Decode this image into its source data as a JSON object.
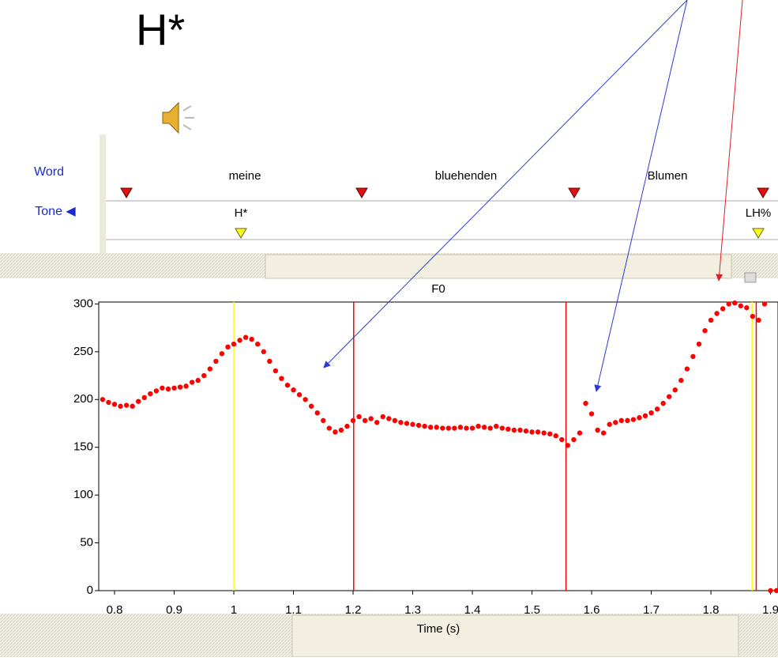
{
  "title": "H*",
  "tiers": {
    "names": [
      "Word",
      "Tone ◀"
    ],
    "words": [
      "meine",
      "bluehenden",
      "Blumen"
    ],
    "tones": [
      "H*",
      "LH%"
    ]
  },
  "chart_data": {
    "type": "scatter",
    "title": "F0",
    "x_label": "Time (s)",
    "color": "#ff0000",
    "x": [
      0.78,
      0.79,
      0.8,
      0.81,
      0.82,
      0.83,
      0.84,
      0.85,
      0.86,
      0.87,
      0.88,
      0.89,
      0.9,
      0.91,
      0.92,
      0.93,
      0.94,
      0.95,
      0.96,
      0.97,
      0.98,
      0.99,
      1.0,
      1.01,
      1.02,
      1.03,
      1.04,
      1.05,
      1.06,
      1.07,
      1.08,
      1.09,
      1.1,
      1.11,
      1.12,
      1.13,
      1.14,
      1.15,
      1.16,
      1.17,
      1.18,
      1.19,
      1.2,
      1.21,
      1.22,
      1.23,
      1.24,
      1.25,
      1.26,
      1.27,
      1.28,
      1.29,
      1.3,
      1.31,
      1.32,
      1.33,
      1.34,
      1.35,
      1.36,
      1.37,
      1.38,
      1.39,
      1.4,
      1.41,
      1.42,
      1.43,
      1.44,
      1.45,
      1.46,
      1.47,
      1.48,
      1.49,
      1.5,
      1.51,
      1.52,
      1.53,
      1.54,
      1.55,
      1.56,
      1.57,
      1.58,
      1.59,
      1.6,
      1.61,
      1.62,
      1.63,
      1.64,
      1.65,
      1.66,
      1.67,
      1.68,
      1.69,
      1.7,
      1.71,
      1.72,
      1.73,
      1.74,
      1.75,
      1.76,
      1.77,
      1.78,
      1.79,
      1.8,
      1.81,
      1.82,
      1.83,
      1.84,
      1.85,
      1.86,
      1.87,
      1.88,
      1.89,
      1.9,
      1.91
    ],
    "values": [
      200,
      197,
      195,
      193,
      194,
      193,
      198,
      202,
      206,
      209,
      212,
      211,
      212,
      213,
      214,
      218,
      220,
      225,
      232,
      240,
      248,
      255,
      258,
      262,
      265,
      263,
      258,
      250,
      240,
      230,
      222,
      215,
      210,
      205,
      200,
      193,
      186,
      178,
      170,
      166,
      168,
      172,
      178,
      182,
      178,
      180,
      176,
      182,
      180,
      178,
      176,
      175,
      174,
      173,
      172,
      171,
      171,
      170,
      170,
      170,
      171,
      170,
      170,
      172,
      171,
      170,
      172,
      170,
      169,
      168,
      168,
      167,
      166,
      166,
      165,
      164,
      162,
      158,
      152,
      158,
      165,
      196,
      185,
      168,
      165,
      174,
      176,
      178,
      178,
      179,
      181,
      183,
      186,
      190,
      196,
      203,
      210,
      220,
      232,
      245,
      258,
      272,
      283,
      290,
      295,
      300,
      301,
      298,
      296,
      287,
      283,
      300,
      0,
      0
    ],
    "markers": [
      {
        "x": 1.0,
        "color": "#ffff00"
      },
      {
        "x": 1.201,
        "color": "#ff0000"
      },
      {
        "x": 1.557,
        "color": "#ff0000"
      },
      {
        "x": 1.869,
        "color": "#ffff00"
      },
      {
        "x": 1.876,
        "color": "#ff0000"
      }
    ],
    "xlim": [
      0.7735,
      1.9125
    ],
    "ylim": [
      0,
      302
    ],
    "xticks": [
      0.8,
      0.9,
      1,
      1.1,
      1.2,
      1.3,
      1.4,
      1.5,
      1.6,
      1.7,
      1.8,
      1.9
    ],
    "yticks": [
      0,
      50,
      100,
      150,
      200,
      250,
      300
    ]
  }
}
